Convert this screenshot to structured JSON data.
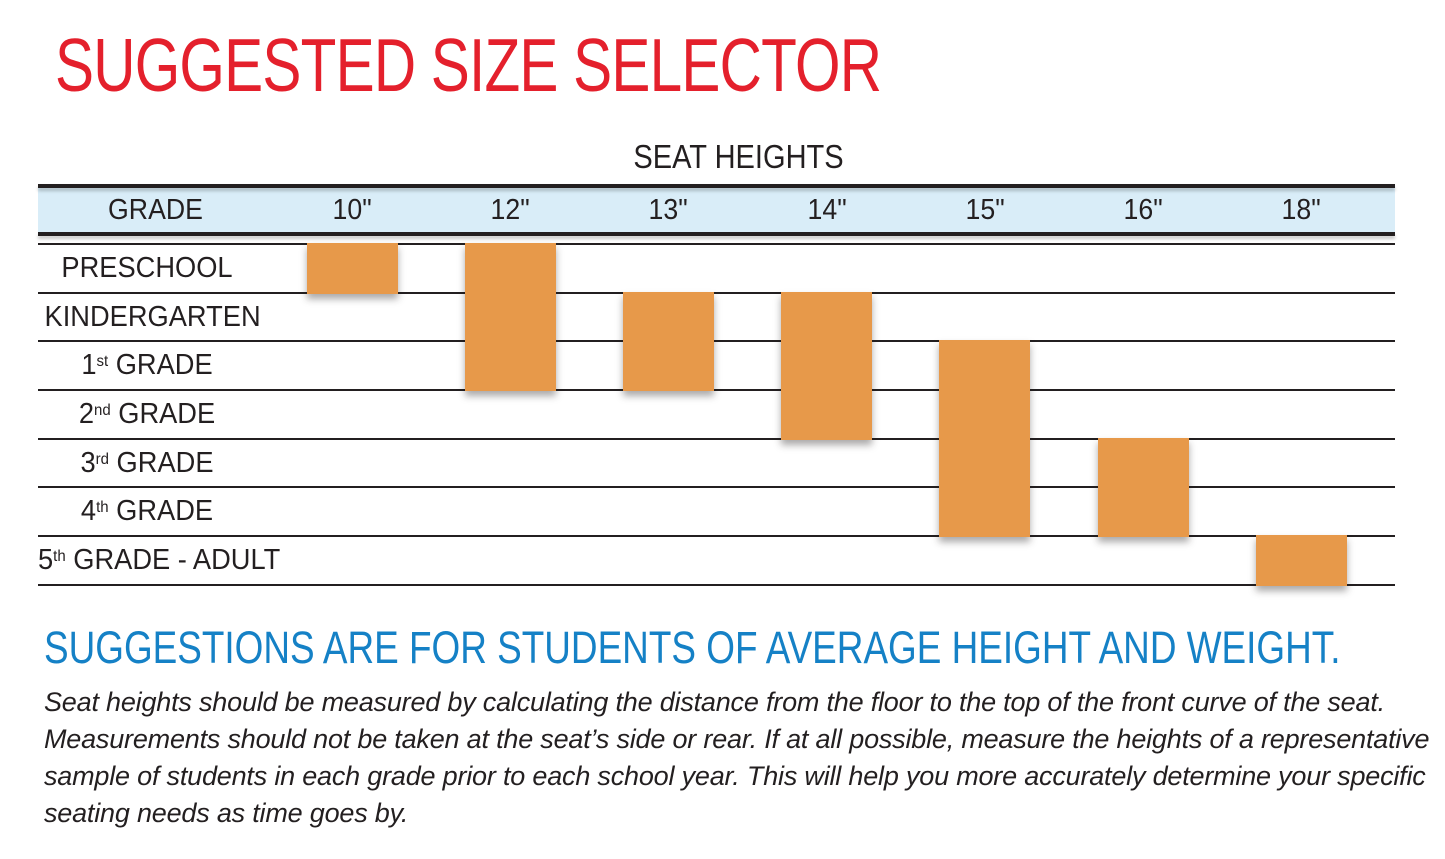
{
  "page": {
    "title": "SUGGESTED SIZE SELECTOR",
    "note_heading": "SUGGESTIONS ARE FOR STUDENTS OF AVERAGE HEIGHT AND WEIGHT.",
    "note_lines": [
      "Seat heights should be measured by calculating the distance from the floor to the top of the front curve of the seat.",
      "Measurements should not be taken at the seat’s side or rear.  If at all possible, measure the heights of a representative",
      "sample of students in each grade prior to each school year.  This will help you more accurately determine your specific",
      "seating needs as time goes by."
    ]
  },
  "colors": {
    "title_red": "#E4202C",
    "note_blue": "#1581C6",
    "header_band_blue": "#D9EDF8",
    "bar_orange": "#E7994A",
    "line_ink": "#231F20"
  },
  "chart_data": {
    "type": "table",
    "title": "SEAT HEIGHTS",
    "corner_header": "GRADE",
    "columns": [
      "10\"",
      "12\"",
      "13\"",
      "14\"",
      "15\"",
      "16\"",
      "18\""
    ],
    "rows": [
      {
        "pre": "PRESCHOOL",
        "sup": "",
        "post": ""
      },
      {
        "pre": "KINDERGARTEN",
        "sup": "",
        "post": ""
      },
      {
        "pre": "1",
        "sup": "st",
        "post": " GRADE"
      },
      {
        "pre": "2",
        "sup": "nd",
        "post": " GRADE"
      },
      {
        "pre": "3",
        "sup": "rd",
        "post": " GRADE"
      },
      {
        "pre": "4",
        "sup": "th",
        "post": " GRADE"
      },
      {
        "pre": "5",
        "sup": "th",
        "post": " GRADE - ADULT"
      }
    ],
    "ranges": [
      {
        "column": "10\"",
        "col": 0,
        "from_row": 0,
        "to_row": 0,
        "grades": "Preschool"
      },
      {
        "column": "12\"",
        "col": 1,
        "from_row": 0,
        "to_row": 2,
        "grades": "Preschool - 1st Grade"
      },
      {
        "column": "13\"",
        "col": 2,
        "from_row": 1,
        "to_row": 2,
        "grades": "Kindergarten - 1st Grade"
      },
      {
        "column": "14\"",
        "col": 3,
        "from_row": 1,
        "to_row": 3,
        "grades": "Kindergarten - 2nd Grade"
      },
      {
        "column": "15\"",
        "col": 4,
        "from_row": 2,
        "to_row": 5,
        "grades": "1st Grade - 4th Grade"
      },
      {
        "column": "16\"",
        "col": 5,
        "from_row": 4,
        "to_row": 5,
        "grades": "3rd Grade - 4th Grade"
      },
      {
        "column": "18\"",
        "col": 6,
        "from_row": 6,
        "to_row": 6,
        "grades": "5th Grade - Adult"
      }
    ],
    "legend_position": "none",
    "grid": "horizontal-row-lines"
  }
}
